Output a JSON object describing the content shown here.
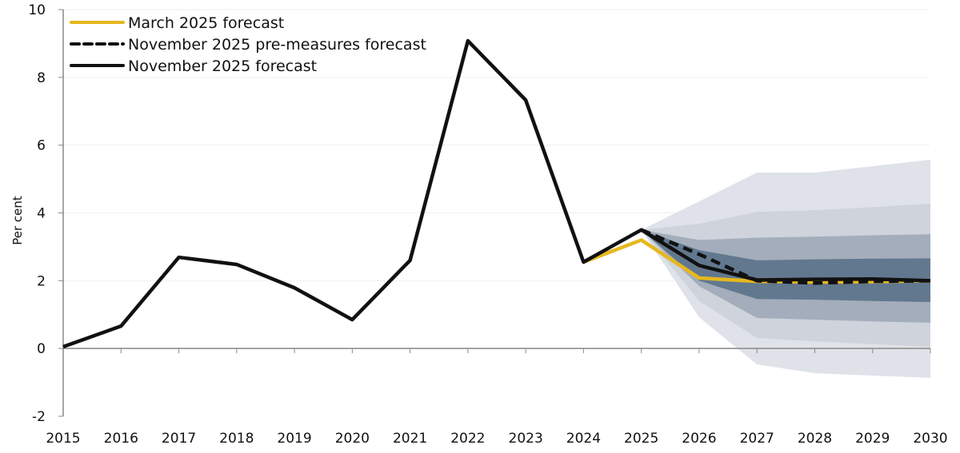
{
  "chart_data": {
    "type": "line",
    "title": "",
    "xlabel": "",
    "ylabel": "Per cent",
    "ylim": [
      -2,
      10
    ],
    "yticks": [
      "-2",
      "0",
      "2",
      "4",
      "6",
      "8",
      "10"
    ],
    "x": [
      "2015",
      "2016",
      "2017",
      "2018",
      "2019",
      "2020",
      "2021",
      "2022",
      "2023",
      "2024",
      "2025",
      "2026",
      "2027",
      "2028",
      "2029",
      "2030"
    ],
    "grid": true,
    "legend_position": "top-left",
    "series": [
      {
        "name": "March 2025 forecast",
        "color": "#e6b81e",
        "style": "solid",
        "x": [
          "2024",
          "2025",
          "2026",
          "2027",
          "2028",
          "2029",
          "2030"
        ],
        "values": [
          2.55,
          3.2,
          2.08,
          1.98,
          1.96,
          1.97,
          2.0
        ]
      },
      {
        "name": "November 2025 pre-measures forecast",
        "color": "#111111",
        "style": "dashed",
        "x": [
          "2025",
          "2026",
          "2027",
          "2028",
          "2029",
          "2030"
        ],
        "values": [
          3.5,
          2.78,
          2.0,
          1.93,
          1.98,
          2.0
        ]
      },
      {
        "name": "November 2025 forecast",
        "color": "#111111",
        "style": "solid",
        "x": [
          "2015",
          "2016",
          "2017",
          "2018",
          "2019",
          "2020",
          "2021",
          "2022",
          "2023",
          "2024",
          "2025",
          "2026",
          "2027",
          "2028",
          "2029",
          "2030"
        ],
        "values": [
          0.05,
          0.66,
          2.69,
          2.48,
          1.79,
          0.85,
          2.6,
          9.08,
          7.33,
          2.55,
          3.5,
          2.45,
          2.02,
          2.04,
          2.05,
          2.0
        ]
      }
    ],
    "fan_bands": {
      "x": [
        "2025",
        "2026",
        "2027",
        "2028",
        "2029",
        "2030"
      ],
      "bands": [
        {
          "color": "#dfe2e9",
          "upper": [
            3.5,
            4.34,
            5.19,
            5.19,
            5.38,
            5.57
          ],
          "lower": [
            3.5,
            0.92,
            -0.47,
            -0.73,
            -0.8,
            -0.87
          ]
        },
        {
          "color": "#ced3dc",
          "upper": [
            3.5,
            3.68,
            4.03,
            4.08,
            4.17,
            4.27
          ],
          "lower": [
            3.5,
            1.4,
            0.31,
            0.21,
            0.13,
            0.05
          ]
        },
        {
          "color": "#a3adbb",
          "upper": [
            3.5,
            3.2,
            3.27,
            3.3,
            3.34,
            3.37
          ],
          "lower": [
            3.5,
            1.84,
            0.9,
            0.85,
            0.8,
            0.76
          ]
        },
        {
          "color": "#62788f",
          "upper": [
            3.5,
            2.9,
            2.6,
            2.63,
            2.65,
            2.66
          ],
          "lower": [
            3.5,
            2.0,
            1.46,
            1.44,
            1.4,
            1.37
          ]
        }
      ]
    }
  }
}
